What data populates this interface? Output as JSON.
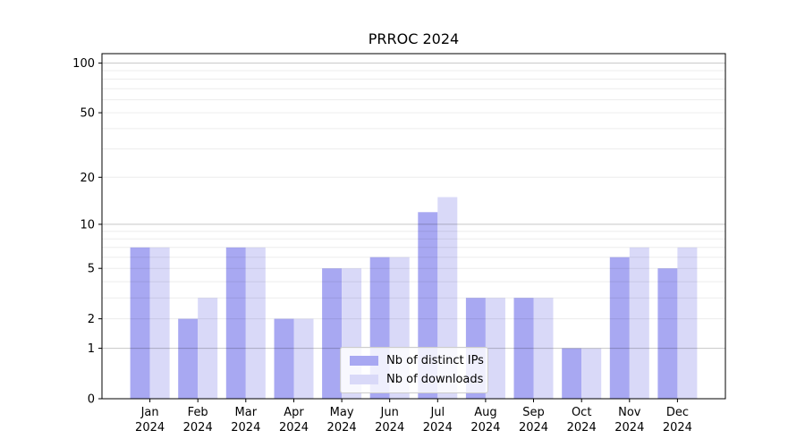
{
  "title": "PRROC 2024",
  "colors": {
    "distinct_ips_bar": "#a8a8f2",
    "downloads_bar": "#d9d9f8",
    "axis": "#000000",
    "grid_major": "rgba(0,0,0,0.22)",
    "grid_minor": "rgba(0,0,0,0.075)",
    "legend_border": "#cccccc",
    "text": "#000000"
  },
  "legend": {
    "items": [
      {
        "label": "Nb of distinct IPs",
        "color_key": "distinct_ips_bar"
      },
      {
        "label": "Nb of downloads",
        "color_key": "downloads_bar"
      }
    ]
  },
  "chart_data": {
    "type": "bar",
    "title": "PRROC 2024",
    "categories": [
      "Jan 2024",
      "Feb 2024",
      "Mar 2024",
      "Apr 2024",
      "May 2024",
      "Jun 2024",
      "Jul 2024",
      "Aug 2024",
      "Sep 2024",
      "Oct 2024",
      "Nov 2024",
      "Dec 2024"
    ],
    "series": [
      {
        "name": "Nb of distinct IPs",
        "values": [
          7,
          2,
          7,
          2,
          5,
          6,
          12,
          3,
          3,
          1,
          6,
          5
        ]
      },
      {
        "name": "Nb of downloads",
        "values": [
          7,
          3,
          7,
          2,
          5,
          6,
          15,
          3,
          3,
          1,
          7,
          7
        ]
      }
    ],
    "yscale": "log1p",
    "yticks": [
      0,
      1,
      2,
      5,
      10,
      20,
      50,
      100
    ],
    "minor_gridlines": [
      2,
      3,
      4,
      5,
      6,
      7,
      8,
      9,
      20,
      30,
      40,
      50,
      60,
      70,
      80,
      90
    ],
    "major_gridlines": [
      1,
      10,
      100
    ],
    "ylim": [
      0,
      114
    ],
    "grid": true,
    "legend_position": "lower center"
  }
}
